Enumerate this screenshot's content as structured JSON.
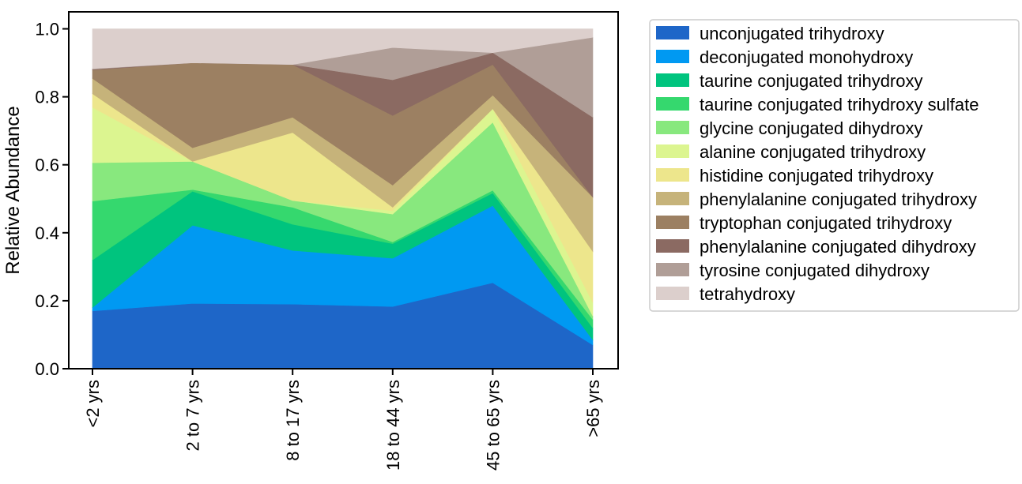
{
  "chart_data": {
    "type": "area",
    "stacked": true,
    "title": "",
    "xlabel": "",
    "ylabel": "Relative Abundance",
    "ylim": [
      0.0,
      1.05
    ],
    "yticks": [
      0.0,
      0.2,
      0.4,
      0.6,
      0.8,
      1.0
    ],
    "ytick_labels": [
      "0.0",
      "0.2",
      "0.4",
      "0.6",
      "0.8",
      "1.0"
    ],
    "grid": false,
    "legend_position": "right",
    "categories": [
      "<2 yrs",
      "2 to 7 yrs",
      "8 to 17 yrs",
      "18 to 44 yrs",
      "45 to 65 yrs",
      ">65 yrs"
    ],
    "series": [
      {
        "name": "unconjugated trihydroxy",
        "color": "#1e66c8",
        "values": [
          0.17,
          0.192,
          0.19,
          0.183,
          0.253,
          0.07
        ]
      },
      {
        "name": "deconjugated monohydroxy",
        "color": "#0099f2",
        "values": [
          0.01,
          0.23,
          0.158,
          0.142,
          0.227,
          0.015
        ]
      },
      {
        "name": "taurine conjugated trihydroxy",
        "color": "#00c47e",
        "values": [
          0.14,
          0.1,
          0.077,
          0.043,
          0.037,
          0.035
        ]
      },
      {
        "name": "taurine conjugated trihydroxy sulfate",
        "color": "#35d86e",
        "values": [
          0.173,
          0.005,
          0.05,
          0.005,
          0.008,
          0.025
        ]
      },
      {
        "name": "glycine conjugated dihydroxy",
        "color": "#88e87e",
        "values": [
          0.113,
          0.083,
          0.02,
          0.082,
          0.2,
          0.01
        ]
      },
      {
        "name": "alanine conjugated trihydroxy",
        "color": "#dcf590",
        "values": [
          0.163,
          0.0,
          0.0,
          0.01,
          0.04,
          0.04
        ]
      },
      {
        "name": "histidine conjugated trihydroxy",
        "color": "#ede68c",
        "values": [
          0.04,
          0.0,
          0.2,
          0.01,
          0.0,
          0.15
        ]
      },
      {
        "name": "phenylalanine conjugated trihydroxy",
        "color": "#c6b37a",
        "values": [
          0.045,
          0.04,
          0.045,
          0.065,
          0.04,
          0.16
        ]
      },
      {
        "name": "tryptophan conjugated trihydroxy",
        "color": "#9c8062",
        "values": [
          0.025,
          0.25,
          0.155,
          0.205,
          0.09,
          0.0
        ]
      },
      {
        "name": "phenylalanine conjugated dihydroxy",
        "color": "#8b6a62",
        "values": [
          0.002,
          0.0,
          0.0,
          0.105,
          0.035,
          0.235
        ]
      },
      {
        "name": "tyrosine conjugated dihydroxy",
        "color": "#b09e97",
        "values": [
          0.002,
          0.0,
          0.0,
          0.095,
          0.0,
          0.235
        ]
      },
      {
        "name": "tetrahydroxy",
        "color": "#dccfcc",
        "values": [
          0.117,
          0.1,
          0.105,
          0.055,
          0.07,
          0.025
        ]
      }
    ]
  }
}
